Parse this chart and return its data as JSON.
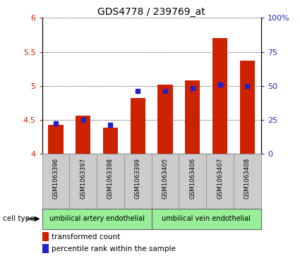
{
  "title": "GDS4778 / 239769_at",
  "samples": [
    "GSM1063396",
    "GSM1063397",
    "GSM1063398",
    "GSM1063399",
    "GSM1063405",
    "GSM1063406",
    "GSM1063407",
    "GSM1063408"
  ],
  "bar_values": [
    4.42,
    4.56,
    4.38,
    4.82,
    5.02,
    5.08,
    5.7,
    5.37
  ],
  "percentile_values": [
    22,
    25,
    21,
    46,
    46,
    48,
    51,
    50
  ],
  "bar_color": "#cc2200",
  "dot_color": "#2222cc",
  "ylim_left": [
    4.0,
    6.0
  ],
  "ylim_right": [
    0,
    100
  ],
  "yticks_left": [
    4.0,
    4.5,
    5.0,
    5.5,
    6.0
  ],
  "ytick_labels_left": [
    "4",
    "4.5",
    "5",
    "5.5",
    "6"
  ],
  "yticks_right": [
    0,
    25,
    50,
    75,
    100
  ],
  "ytick_labels_right": [
    "0",
    "25",
    "50",
    "75",
    "100%"
  ],
  "cell_types": [
    "umbilical artery endothelial",
    "umbilical vein endothelial"
  ],
  "cell_type_ranges": [
    [
      0,
      3
    ],
    [
      4,
      7
    ]
  ],
  "cell_type_color": "#99ee99",
  "legend_items": [
    "transformed count",
    "percentile rank within the sample"
  ],
  "cell_type_label": "cell type"
}
